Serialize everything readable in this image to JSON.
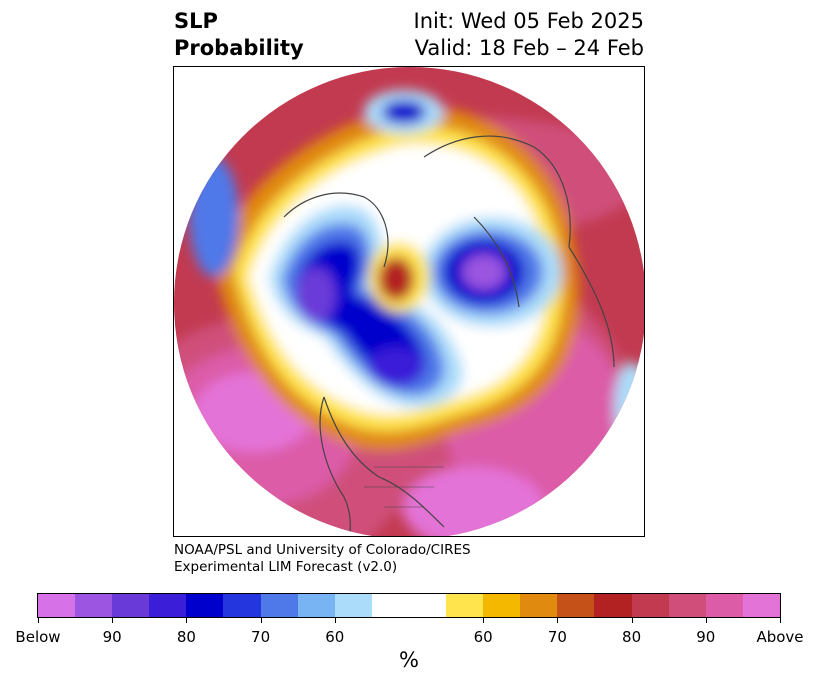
{
  "title": {
    "left_line1": "SLP",
    "left_line2": "Probability",
    "right_line1": "Init: Wed 05 Feb 2025",
    "right_line2": "Valid: 18 Feb – 24 Feb"
  },
  "credit": {
    "line1": "NOAA/PSL and University of Colorado/CIRES",
    "line2": "Experimental LIM Forecast (v2.0)"
  },
  "colorbar": {
    "unit": "%",
    "colors": [
      "#d771e8",
      "#9b55e0",
      "#6a3ad8",
      "#3b1fd8",
      "#0000cc",
      "#2436dd",
      "#4f78e8",
      "#78b4f4",
      "#abdcfa",
      "#ffffff",
      "#ffe44d",
      "#f5b800",
      "#e08a10",
      "#c55018",
      "#b22222",
      "#c23a50",
      "#cf4f7a",
      "#dc5ca8",
      "#e473d8"
    ],
    "ticks": [
      "Below",
      "90",
      "80",
      "70",
      "60",
      "60",
      "70",
      "80",
      "90",
      "Above"
    ]
  }
}
